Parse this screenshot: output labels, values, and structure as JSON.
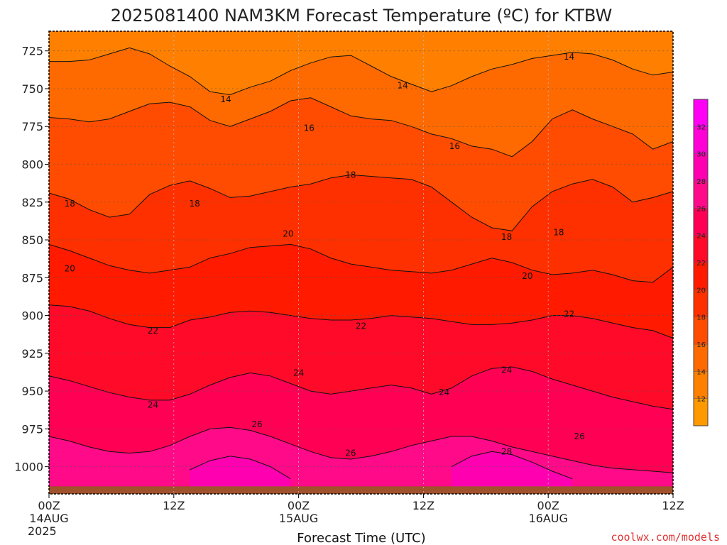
{
  "chart_data": {
    "type": "heatmap",
    "title": "2025081400 NAM3KM Forecast Temperature (ºC) for KTBW",
    "xlabel": "Forecast Time (UTC)",
    "ylabel": "",
    "x_ticks": [
      {
        "label": "00Z",
        "sub1": "14AUG",
        "sub2": "2025",
        "hour": 0
      },
      {
        "label": "12Z",
        "sub1": "",
        "sub2": "",
        "hour": 12
      },
      {
        "label": "00Z",
        "sub1": "15AUG",
        "sub2": "",
        "hour": 24
      },
      {
        "label": "12Z",
        "sub1": "",
        "sub2": "",
        "hour": 36
      },
      {
        "label": "00Z",
        "sub1": "16AUG",
        "sub2": "",
        "hour": 48
      },
      {
        "label": "12Z",
        "sub1": "",
        "sub2": "",
        "hour": 60
      }
    ],
    "xlim_hours": [
      0,
      60
    ],
    "y_ticks": [
      725,
      750,
      775,
      800,
      825,
      850,
      875,
      900,
      925,
      950,
      975,
      1000
    ],
    "ylim_hpa": [
      712,
      1018
    ],
    "grid": true,
    "surface_pressure_hpa": 1013,
    "colorbar": {
      "levels": [
        10,
        12,
        14,
        16,
        18,
        20,
        22,
        24,
        26,
        28,
        30,
        32,
        34
      ],
      "tick_labels": [
        "12",
        "14",
        "16",
        "18",
        "20",
        "22",
        "24",
        "26",
        "28",
        "30",
        "32"
      ],
      "colors": [
        "#ff9900",
        "#ff8000",
        "#ff6a00",
        "#ff4c00",
        "#ff3000",
        "#ff1a00",
        "#ff0a28",
        "#ff0055",
        "#ff0a88",
        "#ff00b0",
        "#ff00d6",
        "#ff00f5"
      ]
    },
    "isotherms": [
      {
        "temp": 14,
        "p": [
          732,
          732,
          731,
          727,
          723,
          727,
          735,
          742,
          752,
          754,
          749,
          745,
          738,
          733,
          729,
          728,
          735,
          742,
          747,
          752,
          748,
          742,
          737,
          734,
          730,
          728,
          726,
          727,
          731,
          737,
          741,
          739
        ]
      },
      {
        "temp": 16,
        "p": [
          769,
          770,
          772,
          770,
          765,
          760,
          759,
          762,
          771,
          775,
          770,
          765,
          758,
          756,
          762,
          768,
          770,
          771,
          775,
          780,
          783,
          788,
          790,
          795,
          785,
          770,
          764,
          770,
          775,
          780,
          790,
          785
        ]
      },
      {
        "temp": 18,
        "p": [
          819,
          823,
          830,
          835,
          833,
          820,
          814,
          811,
          816,
          822,
          821,
          818,
          815,
          813,
          809,
          807,
          808,
          809,
          810,
          815,
          825,
          835,
          842,
          844,
          828,
          818,
          813,
          810,
          815,
          825,
          822,
          818
        ]
      },
      {
        "temp": 20,
        "p": [
          853,
          857,
          862,
          867,
          870,
          872,
          870,
          868,
          862,
          859,
          855,
          854,
          853,
          856,
          862,
          866,
          868,
          870,
          871,
          872,
          870,
          866,
          862,
          865,
          870,
          873,
          872,
          870,
          873,
          877,
          878,
          868
        ]
      },
      {
        "temp": 22,
        "p": [
          893,
          894,
          897,
          902,
          906,
          908,
          908,
          903,
          901,
          898,
          897,
          898,
          900,
          902,
          903,
          903,
          902,
          900,
          901,
          902,
          904,
          906,
          906,
          905,
          903,
          900,
          900,
          902,
          905,
          908,
          910,
          915
        ]
      },
      {
        "temp": 24,
        "p": [
          940,
          943,
          947,
          951,
          954,
          956,
          956,
          952,
          946,
          941,
          938,
          940,
          945,
          950,
          952,
          950,
          948,
          946,
          948,
          952,
          948,
          940,
          935,
          934,
          937,
          942,
          946,
          950,
          954,
          957,
          960,
          962
        ]
      },
      {
        "temp": 26,
        "p": [
          980,
          983,
          987,
          990,
          991,
          990,
          986,
          980,
          975,
          974,
          976,
          980,
          985,
          990,
          994,
          995,
          993,
          990,
          986,
          983,
          980,
          980,
          983,
          987,
          990,
          993,
          996,
          999,
          1001,
          1002,
          1003,
          1004
        ]
      },
      {
        "temp": 28,
        "p": [
          null,
          null,
          null,
          null,
          null,
          null,
          null,
          1002,
          996,
          993,
          995,
          1000,
          1008,
          null,
          null,
          null,
          null,
          null,
          null,
          null,
          1000,
          993,
          990,
          992,
          997,
          1003,
          1008,
          null,
          null,
          null,
          null,
          null
        ]
      }
    ],
    "label_points": [
      {
        "text": "14",
        "hour": 17,
        "p": 757
      },
      {
        "text": "14",
        "hour": 34,
        "p": 748
      },
      {
        "text": "14",
        "hour": 50,
        "p": 729
      },
      {
        "text": "16",
        "hour": 25,
        "p": 776
      },
      {
        "text": "16",
        "hour": 39,
        "p": 788
      },
      {
        "text": "18",
        "hour": 2,
        "p": 826
      },
      {
        "text": "18",
        "hour": 14,
        "p": 826
      },
      {
        "text": "18",
        "hour": 29,
        "p": 807
      },
      {
        "text": "18",
        "hour": 44,
        "p": 848
      },
      {
        "text": "18",
        "hour": 49,
        "p": 845
      },
      {
        "text": "20",
        "hour": 2,
        "p": 869
      },
      {
        "text": "20",
        "hour": 23,
        "p": 846
      },
      {
        "text": "20",
        "hour": 46,
        "p": 874
      },
      {
        "text": "22",
        "hour": 10,
        "p": 910
      },
      {
        "text": "22",
        "hour": 30,
        "p": 907
      },
      {
        "text": "22",
        "hour": 50,
        "p": 899
      },
      {
        "text": "24",
        "hour": 10,
        "p": 959
      },
      {
        "text": "24",
        "hour": 24,
        "p": 938
      },
      {
        "text": "24",
        "hour": 38,
        "p": 951
      },
      {
        "text": "24",
        "hour": 44,
        "p": 936
      },
      {
        "text": "26",
        "hour": 20,
        "p": 972
      },
      {
        "text": "26",
        "hour": 29,
        "p": 991
      },
      {
        "text": "26",
        "hour": 51,
        "p": 980
      },
      {
        "text": "28",
        "hour": 44,
        "p": 990
      }
    ]
  },
  "credit": "coolwx.com/models"
}
